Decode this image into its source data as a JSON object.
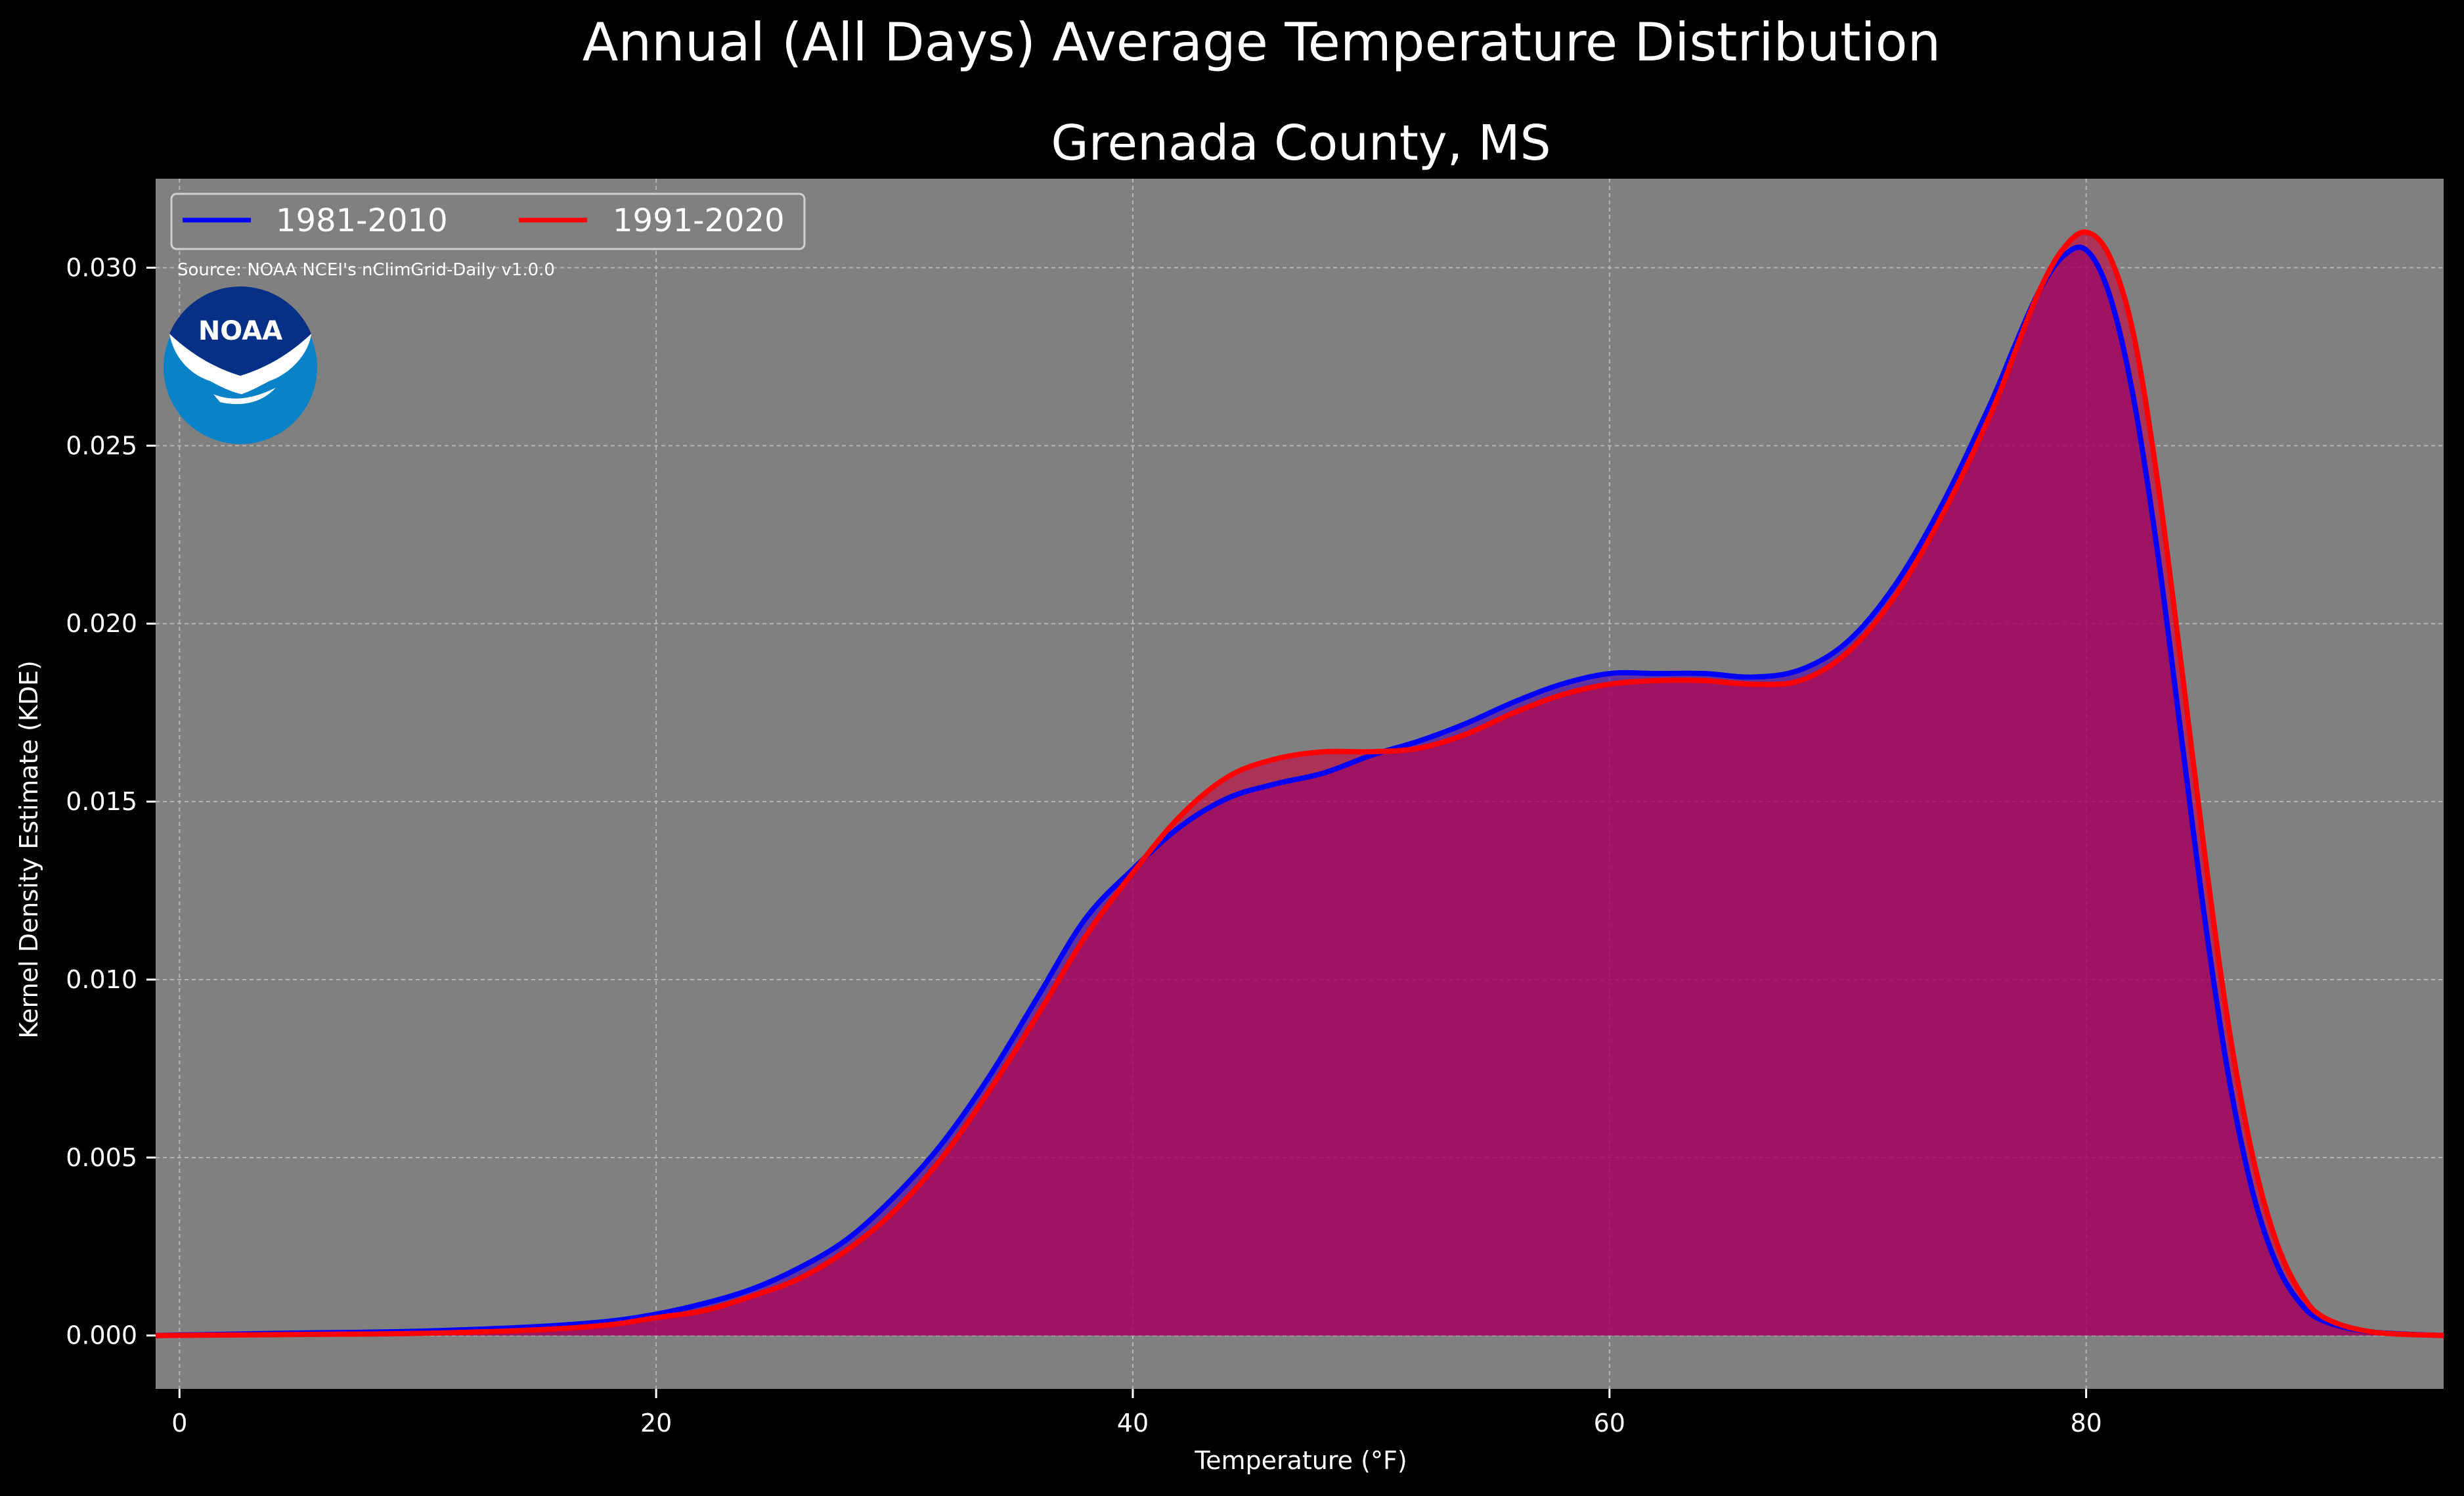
{
  "chart_data": {
    "type": "area",
    "title": "Annual (All Days) Average Temperature Distribution",
    "subtitle": "Grenada County, MS",
    "xlabel": "Temperature (°F)",
    "ylabel": "Kernel Density Estimate (KDE)",
    "xlim": [
      -1,
      95
    ],
    "ylim": [
      -0.0015,
      0.0325
    ],
    "x_ticks": [
      0,
      20,
      40,
      60,
      80
    ],
    "x_tick_labels": [
      "0",
      "20",
      "40",
      "60",
      "80"
    ],
    "y_ticks": [
      0.0,
      0.005,
      0.01,
      0.015,
      0.02,
      0.025,
      0.03
    ],
    "y_tick_labels": [
      "0.000",
      "0.005",
      "0.010",
      "0.015",
      "0.020",
      "0.025",
      "0.030"
    ],
    "grid": true,
    "legend_position": "top-left",
    "annotation": "Source: NOAA NCEI's nClimGrid-Daily v1.0.0",
    "logo_text": "NOAA",
    "series": [
      {
        "name": "1981-2010",
        "color": "#0000ff",
        "fill": "#4b00b4",
        "x": [
          -1,
          5,
          10,
          15,
          18,
          20,
          22,
          24,
          26,
          28,
          30,
          32,
          34,
          36,
          38,
          40,
          42,
          44,
          46,
          48,
          50,
          52,
          54,
          56,
          58,
          60,
          62,
          64,
          66,
          68,
          70,
          72,
          74,
          76,
          77,
          78,
          79,
          80,
          81,
          82,
          83,
          84,
          85,
          86,
          87,
          88,
          89,
          90,
          92,
          95
        ],
        "values": [
          0.0,
          7e-05,
          0.00012,
          0.00025,
          0.0004,
          0.0006,
          0.0009,
          0.0013,
          0.0019,
          0.0027,
          0.0039,
          0.0054,
          0.0073,
          0.0095,
          0.0117,
          0.0131,
          0.0143,
          0.0151,
          0.0155,
          0.0158,
          0.0163,
          0.0167,
          0.0172,
          0.0178,
          0.0183,
          0.0186,
          0.0186,
          0.0186,
          0.0185,
          0.0187,
          0.0195,
          0.0211,
          0.0234,
          0.0262,
          0.0278,
          0.0293,
          0.0303,
          0.0305,
          0.0292,
          0.0263,
          0.022,
          0.0168,
          0.0116,
          0.0072,
          0.004,
          0.002,
          0.0009,
          0.0004,
          0.0001,
          0.0
        ]
      },
      {
        "name": "1991-2020",
        "color": "#ff0000",
        "fill": "#c8003c",
        "x": [
          -1,
          5,
          10,
          15,
          18,
          20,
          22,
          24,
          26,
          28,
          30,
          32,
          34,
          36,
          38,
          40,
          42,
          44,
          46,
          48,
          50,
          52,
          54,
          56,
          58,
          60,
          62,
          64,
          66,
          68,
          70,
          72,
          74,
          76,
          77,
          78,
          79,
          80,
          81,
          82,
          83,
          84,
          85,
          86,
          87,
          88,
          89,
          90,
          92,
          95
        ],
        "values": [
          0.0,
          3e-05,
          6e-05,
          0.00016,
          0.0003,
          0.0005,
          0.0007,
          0.0011,
          0.0016,
          0.0024,
          0.0035,
          0.005,
          0.0069,
          0.009,
          0.0112,
          0.013,
          0.0146,
          0.0157,
          0.0162,
          0.0164,
          0.0164,
          0.0165,
          0.0169,
          0.0175,
          0.018,
          0.0183,
          0.0184,
          0.0184,
          0.0183,
          0.0184,
          0.0192,
          0.0208,
          0.0231,
          0.0259,
          0.0276,
          0.0293,
          0.0305,
          0.031,
          0.0303,
          0.0281,
          0.024,
          0.0188,
          0.0134,
          0.0086,
          0.005,
          0.0026,
          0.0012,
          0.0005,
          0.0001,
          0.0
        ]
      }
    ]
  }
}
